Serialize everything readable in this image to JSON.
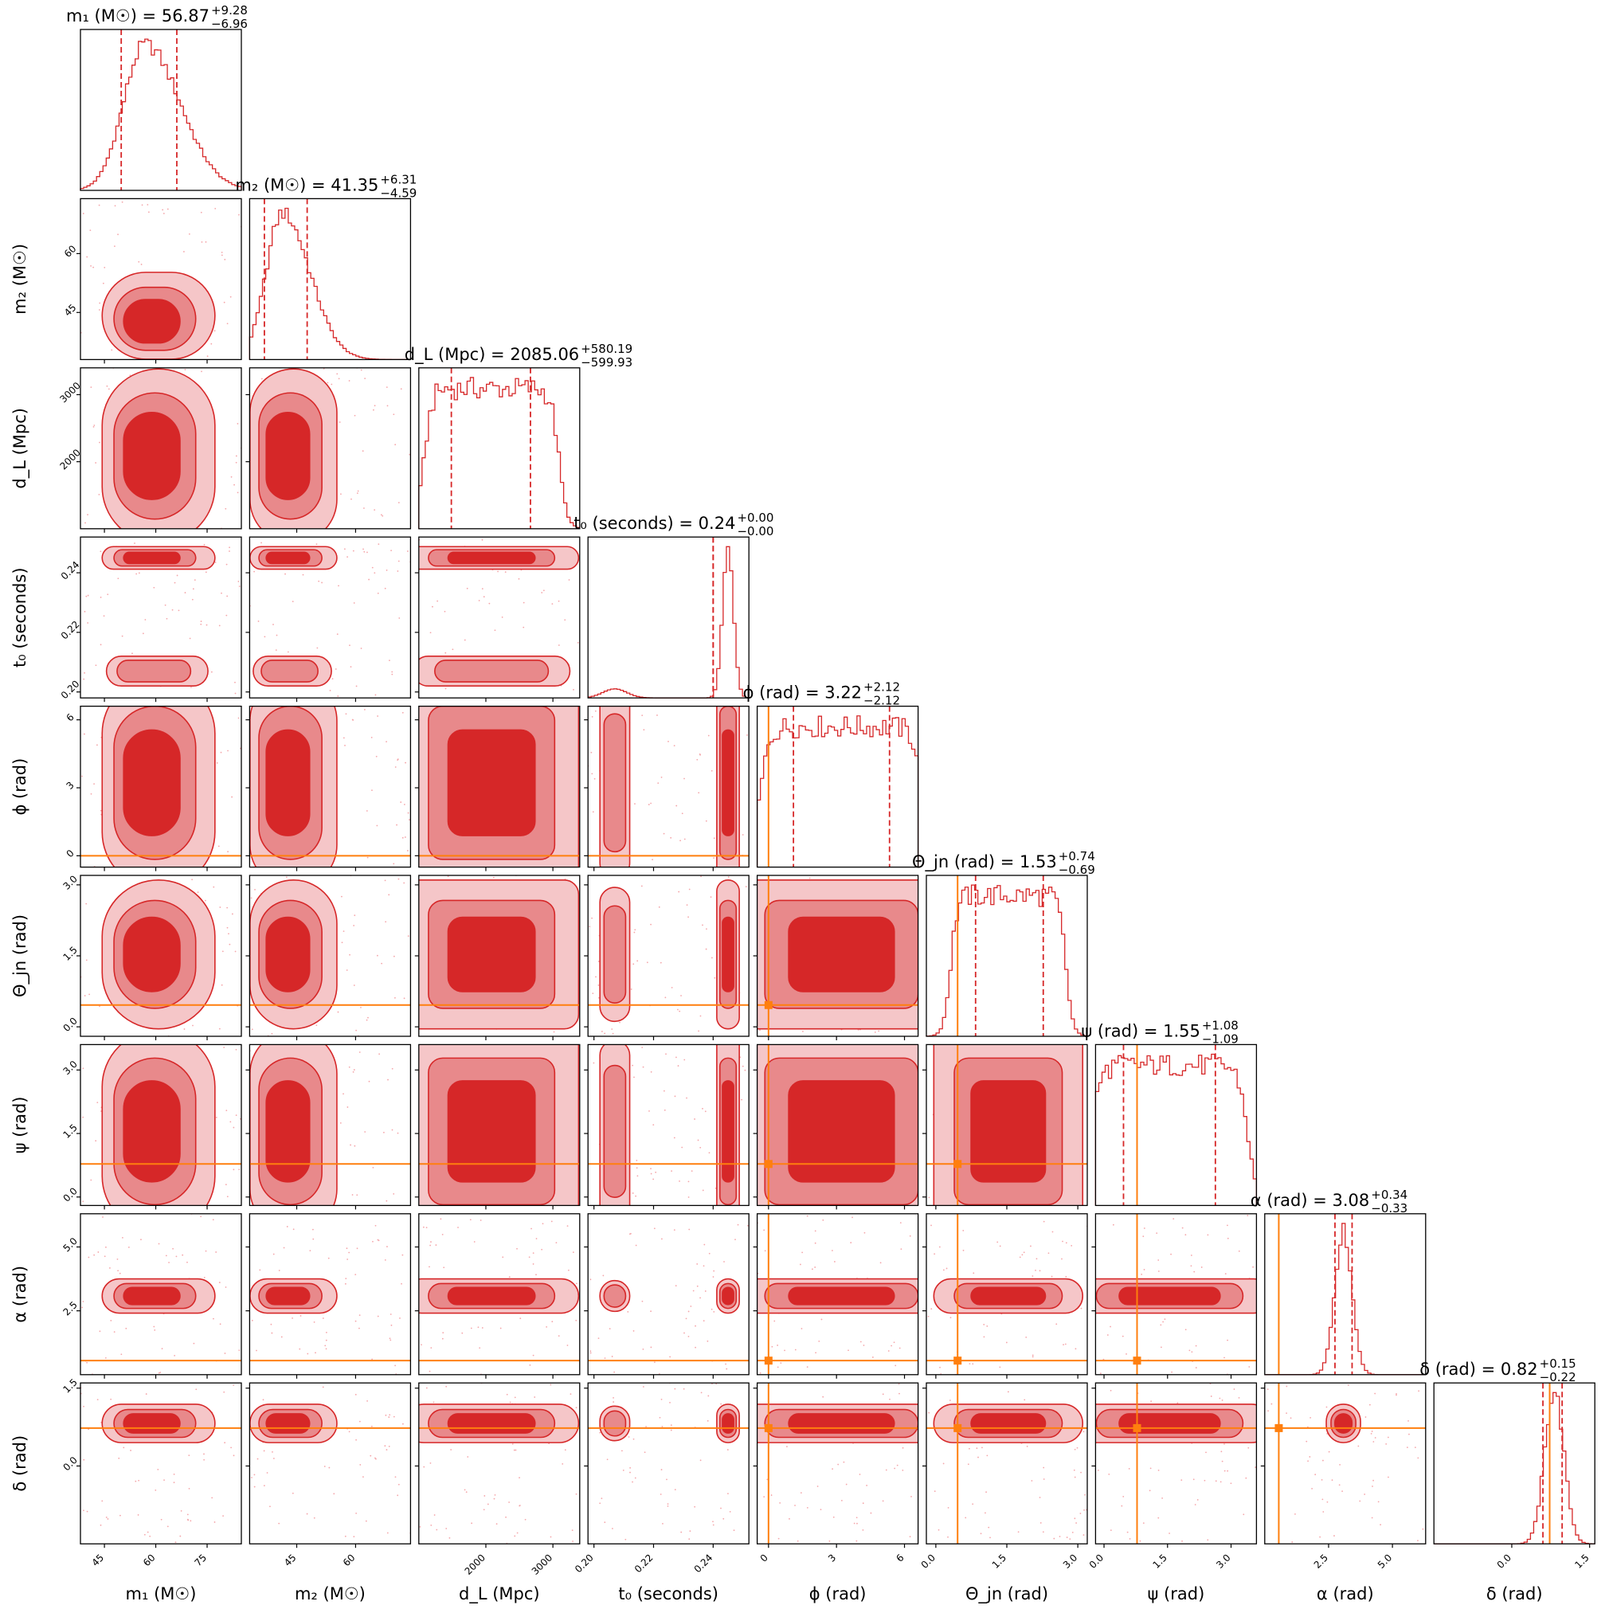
{
  "chart_data": {
    "type": "corner",
    "params": [
      {
        "key": "m1",
        "label": "m₁ (M☉)",
        "title": "m₁ (M☉) = 56.87",
        "median": 56.87,
        "err_plus": 9.28,
        "err_minus": 6.96,
        "err_plus_text": "+9.28",
        "err_minus_text": "−6.96",
        "range": [
          38,
          85
        ],
        "ticks": [
          45,
          60,
          75
        ],
        "tick_labels": [
          "45",
          "60",
          "75"
        ],
        "truth": null,
        "bimodal": false,
        "uniform": false
      },
      {
        "key": "m2",
        "label": "m₂ (M☉)",
        "title": "m₂ (M☉) = 41.35",
        "median": 41.35,
        "err_plus": 6.31,
        "err_minus": 4.59,
        "err_plus_text": "+6.31",
        "err_minus_text": "−4.59",
        "range": [
          33,
          74
        ],
        "ticks": [
          45,
          60
        ],
        "tick_labels": [
          "45",
          "60"
        ],
        "truth": null,
        "bimodal": false,
        "uniform": false
      },
      {
        "key": "dL",
        "label": "d_L (Mpc)",
        "title": "d_L (Mpc) = 2085.06",
        "median": 2085.06,
        "err_plus": 580.19,
        "err_minus": 599.93,
        "err_plus_text": "+580.19",
        "err_minus_text": "−599.93",
        "range": [
          1000,
          3400
        ],
        "ticks": [
          2000,
          3000
        ],
        "tick_labels": [
          "2000",
          "3000"
        ],
        "truth": null,
        "bimodal": false,
        "uniform": true
      },
      {
        "key": "t0",
        "label": "t₀ (seconds)",
        "title": "t₀ (seconds) = 0.24",
        "median": 0.24,
        "err_plus": 0.0,
        "err_minus": 0.0,
        "err_plus_text": "+0.00",
        "err_minus_text": "−0.00",
        "range": [
          0.198,
          0.252
        ],
        "ticks": [
          0.2,
          0.22,
          0.24
        ],
        "tick_labels": [
          "0.20",
          "0.22",
          "0.24"
        ],
        "truth": null,
        "bimodal": true,
        "main": 0.245,
        "minor": 0.207,
        "uniform": false
      },
      {
        "key": "phi",
        "label": "ϕ (rad)",
        "title": "ϕ (rad) = 3.22",
        "median": 3.22,
        "err_plus": 2.12,
        "err_minus": 2.12,
        "err_plus_text": "+2.12",
        "err_minus_text": "−2.12",
        "range": [
          -0.5,
          6.6
        ],
        "ticks": [
          0,
          3,
          6
        ],
        "tick_labels": [
          "0",
          "3",
          "6"
        ],
        "truth": 0.0,
        "bimodal": false,
        "uniform": true
      },
      {
        "key": "theta",
        "label": "Θ_jn (rad)",
        "title": "Θ_jn (rad) = 1.53",
        "median": 1.53,
        "err_plus": 0.74,
        "err_minus": 0.69,
        "err_plus_text": "+0.74",
        "err_minus_text": "−0.69",
        "range": [
          -0.2,
          3.2
        ],
        "ticks": [
          0.0,
          1.5,
          3.0
        ],
        "tick_labels": [
          "0.0",
          "1.5",
          "3.0"
        ],
        "truth": 0.46,
        "bimodal": false,
        "uniform": true
      },
      {
        "key": "psi",
        "label": "ψ (rad)",
        "title": "ψ (rad) = 1.55",
        "median": 1.55,
        "err_plus": 1.08,
        "err_minus": 1.09,
        "err_plus_text": "+1.08",
        "err_minus_text": "−1.09",
        "range": [
          -0.2,
          3.6
        ],
        "ticks": [
          0.0,
          1.5,
          3.0
        ],
        "tick_labels": [
          "0.0",
          "1.5",
          "3.0"
        ],
        "truth": 0.78,
        "bimodal": false,
        "uniform": true
      },
      {
        "key": "alpha",
        "label": "α (rad)",
        "title": "α (rad) = 3.08",
        "median": 3.08,
        "err_plus": 0.34,
        "err_minus": 0.33,
        "err_plus_text": "+0.34",
        "err_minus_text": "−0.33",
        "range": [
          0.0,
          6.3
        ],
        "ticks": [
          2.5,
          5.0
        ],
        "tick_labels": [
          "2.5",
          "5.0"
        ],
        "truth": 0.55,
        "bimodal": false,
        "uniform": false
      },
      {
        "key": "delta",
        "label": "δ (rad)",
        "title": "δ (rad) = 0.82",
        "median": 0.82,
        "err_plus": 0.15,
        "err_minus": 0.22,
        "err_plus_text": "+0.15",
        "err_minus_text": "−0.22",
        "range": [
          -1.5,
          1.6
        ],
        "ticks": [
          0.0,
          1.5
        ],
        "tick_labels": [
          "0.0",
          "1.5"
        ],
        "truth": 0.73,
        "bimodal": false,
        "uniform": false
      }
    ],
    "colors": {
      "contour_dark": "#d62728",
      "contour_mid": "#e8898b",
      "contour_light": "#f5c6c8",
      "contour_line": "#d62728",
      "histogram": "#d62728",
      "quantile_line": "#d62728",
      "truth": "#ff7f0e",
      "scatter": "#f4a6aa"
    }
  }
}
